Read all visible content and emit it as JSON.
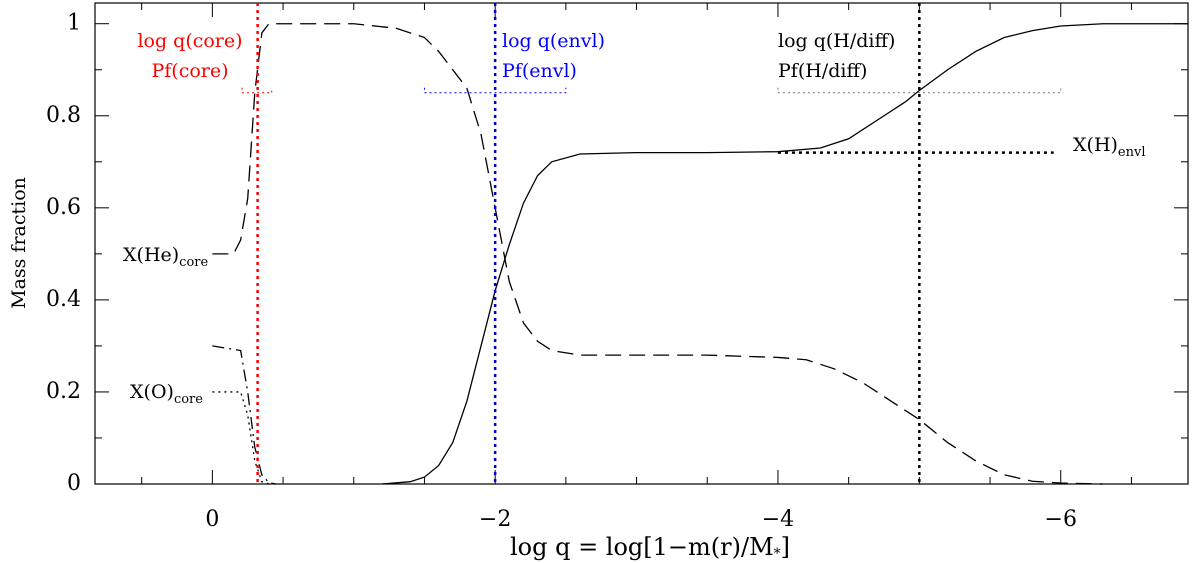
{
  "chart_data": {
    "type": "line",
    "ylabel": "Mass fraction",
    "xlabel": {
      "text": "log q = log[1−m(r)/M",
      "sub": "*",
      "after": "]"
    },
    "xlim": [
      0.83,
      -6.9
    ],
    "ylim": [
      0,
      1.045
    ],
    "xticks": [
      0,
      {
        "value": -2,
        "label": "−2"
      },
      {
        "value": -4,
        "label": "−4"
      },
      {
        "value": -6,
        "label": "−6"
      }
    ],
    "yticks": [
      0,
      0.2,
      0.4,
      0.6,
      0.8,
      1
    ],
    "xminorticks": [
      0.5,
      -0.5,
      -1,
      -1.5,
      -2.5,
      -3,
      -3.5,
      -4.5,
      -5,
      -5.5,
      -6.5
    ],
    "yminorticks": [
      0.1,
      0.3,
      0.5,
      0.7,
      0.9
    ],
    "series": [
      {
        "color": "#000000",
        "dash": "solid",
        "x": [
          -1.2,
          -1.4,
          -1.5,
          -1.6,
          -1.7,
          -1.8,
          -1.9,
          -2.0,
          -2.1,
          -2.2,
          -2.3,
          -2.4,
          -2.6,
          -3,
          -3.5,
          -4,
          -4.3,
          -4.5,
          -4.7,
          -4.9,
          -5.0,
          -5.2,
          -5.4,
          -5.6,
          -5.8,
          -6.0,
          -6.3,
          -6.9
        ],
        "values": [
          0,
          0.005,
          0.015,
          0.04,
          0.09,
          0.18,
          0.3,
          0.42,
          0.52,
          0.61,
          0.67,
          0.7,
          0.717,
          0.72,
          0.72,
          0.722,
          0.73,
          0.75,
          0.79,
          0.83,
          0.855,
          0.9,
          0.94,
          0.97,
          0.985,
          0.995,
          1.0,
          1.0
        ]
      },
      {
        "color": "#000000",
        "dash": "dashed",
        "x": [
          0.0,
          -0.15,
          -0.2,
          -0.25,
          -0.3,
          -0.35,
          -0.4,
          -0.6,
          -1.0,
          -1.3,
          -1.5,
          -1.6,
          -1.7,
          -1.8,
          -1.9,
          -2.0,
          -2.1,
          -2.2,
          -2.3,
          -2.4,
          -2.6,
          -3,
          -3.5,
          -4,
          -4.2,
          -4.4,
          -4.6,
          -4.8,
          -5.0,
          -5.2,
          -5.4,
          -5.6,
          -5.8,
          -6.0,
          -6.3
        ],
        "values": [
          0.5,
          0.5,
          0.53,
          0.62,
          0.85,
          0.98,
          1.0,
          1.0,
          1.0,
          0.99,
          0.97,
          0.94,
          0.9,
          0.86,
          0.76,
          0.6,
          0.44,
          0.35,
          0.31,
          0.29,
          0.28,
          0.28,
          0.28,
          0.275,
          0.27,
          0.25,
          0.22,
          0.18,
          0.14,
          0.09,
          0.05,
          0.02,
          0.006,
          0.002,
          0
        ]
      },
      {
        "color": "#000000",
        "dash": "dotted",
        "x": [
          0,
          -0.2,
          -0.25,
          -0.3,
          -0.35,
          -0.4
        ],
        "values": [
          0.2,
          0.2,
          0.15,
          0.05,
          0.005,
          0
        ]
      },
      {
        "color": "#000000",
        "dash": "dashdot",
        "x": [
          0,
          -0.2,
          -0.25,
          -0.3,
          -0.35,
          -0.4,
          -0.45
        ],
        "values": [
          0.3,
          0.29,
          0.2,
          0.08,
          0.02,
          0.003,
          0
        ]
      }
    ],
    "vlines": [
      {
        "x": -0.32,
        "color": "#ff0000"
      },
      {
        "x": -2.0,
        "color": "#0000cc"
      },
      {
        "x": -5.0,
        "color": "#000000"
      }
    ],
    "brackets": [
      {
        "x": [
          -0.21,
          -0.42
        ],
        "y": 0.85,
        "color": "#ff0000"
      },
      {
        "x": [
          -1.5,
          -2.5
        ],
        "y": 0.85,
        "color": "#0000ff"
      },
      {
        "x": [
          -4,
          -6
        ],
        "y": 0.85,
        "color": "#777777"
      }
    ],
    "hlines": [
      {
        "x": [
          -4,
          -5.95
        ],
        "y": 0.72,
        "color": "#000000"
      }
    ],
    "annotations": [
      {
        "text": "log q(core)",
        "color": "#ff0000"
      },
      {
        "text": "Pf(core)",
        "color": "#ff0000"
      },
      {
        "text": "log q(envl)",
        "color": "#0000ff"
      },
      {
        "text": "Pf(envl)",
        "color": "#0000ff"
      },
      {
        "text": "log q(H/diff)",
        "color": "#000000"
      },
      {
        "text": "Pf(H/diff)",
        "color": "#000000"
      },
      {
        "text": "X(He)",
        "sub": "core",
        "color": "#000000"
      },
      {
        "text": "X(O)",
        "sub": "core",
        "color": "#000000"
      },
      {
        "text": "X(H)",
        "sub": "envl",
        "color": "#000000"
      }
    ]
  }
}
